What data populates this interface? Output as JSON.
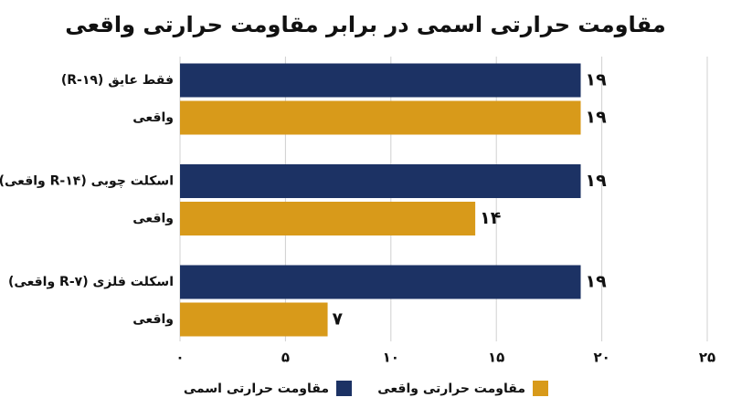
{
  "chart_data": {
    "type": "hbar",
    "title": "مقاومت حرارتی اسمی در برابر مقاومت حرارتی واقعی",
    "categories": [
      "فقط عایق (R-۱۹)",
      "واقعی",
      "اسکلت چوبی (R-۱۴ واقعی)",
      "واقعی",
      "اسکلت فلزی (R-۷ واقعی)",
      "واقعی"
    ],
    "series": [
      {
        "name": "مقاومت حرارتی اسمی",
        "color": "#1c3264",
        "values": [
          19,
          null,
          19,
          null,
          19,
          null
        ],
        "value_labels": [
          "۱۹",
          null,
          "۱۹",
          null,
          "۱۹",
          null
        ]
      },
      {
        "name": "مقاومت حرارتی واقعی",
        "color": "#d89a1a",
        "values": [
          null,
          19,
          null,
          14,
          null,
          7
        ],
        "value_labels": [
          null,
          "۱۹",
          null,
          "۱۴",
          null,
          "۷"
        ]
      }
    ],
    "xlim": [
      0,
      25
    ],
    "xticks": [
      {
        "value": 0,
        "label": "۰"
      },
      {
        "value": 5,
        "label": "۵"
      },
      {
        "value": 10,
        "label": "۱۰"
      },
      {
        "value": 15,
        "label": "۱۵"
      },
      {
        "value": 20,
        "label": "۲۰"
      },
      {
        "value": 25,
        "label": "۲۵"
      }
    ],
    "grid": true
  }
}
